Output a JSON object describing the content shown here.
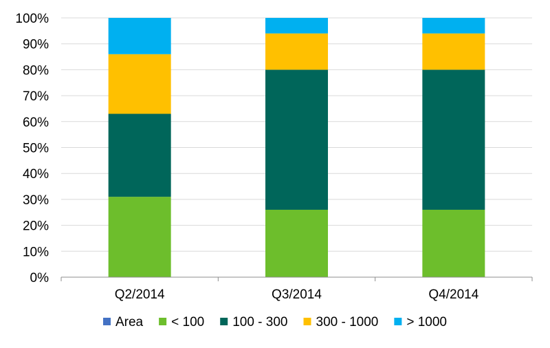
{
  "chart_data": {
    "type": "bar",
    "stacked": true,
    "percent": true,
    "categories": [
      "Q2/2014",
      "Q3/2014",
      "Q4/2014"
    ],
    "series": [
      {
        "name": "Area",
        "color": "#4472C4",
        "values": [
          0,
          0,
          0
        ]
      },
      {
        "name": "< 100",
        "color": "#6DBE2C",
        "values": [
          31,
          26,
          26
        ]
      },
      {
        "name": "100 - 300",
        "color": "#00665A",
        "values": [
          32,
          54,
          54
        ]
      },
      {
        "name": "300 - 1000",
        "color": "#FFC000",
        "values": [
          23,
          14,
          14
        ]
      },
      {
        "name": "> 1000",
        "color": "#00B0F0",
        "values": [
          14,
          6,
          6
        ]
      }
    ],
    "yticks": [
      "0%",
      "10%",
      "20%",
      "30%",
      "40%",
      "50%",
      "60%",
      "70%",
      "80%",
      "90%",
      "100%"
    ],
    "ylim": [
      0,
      100
    ],
    "grid": true,
    "gridColor": "#D9D9D9",
    "legend": "bottom"
  }
}
